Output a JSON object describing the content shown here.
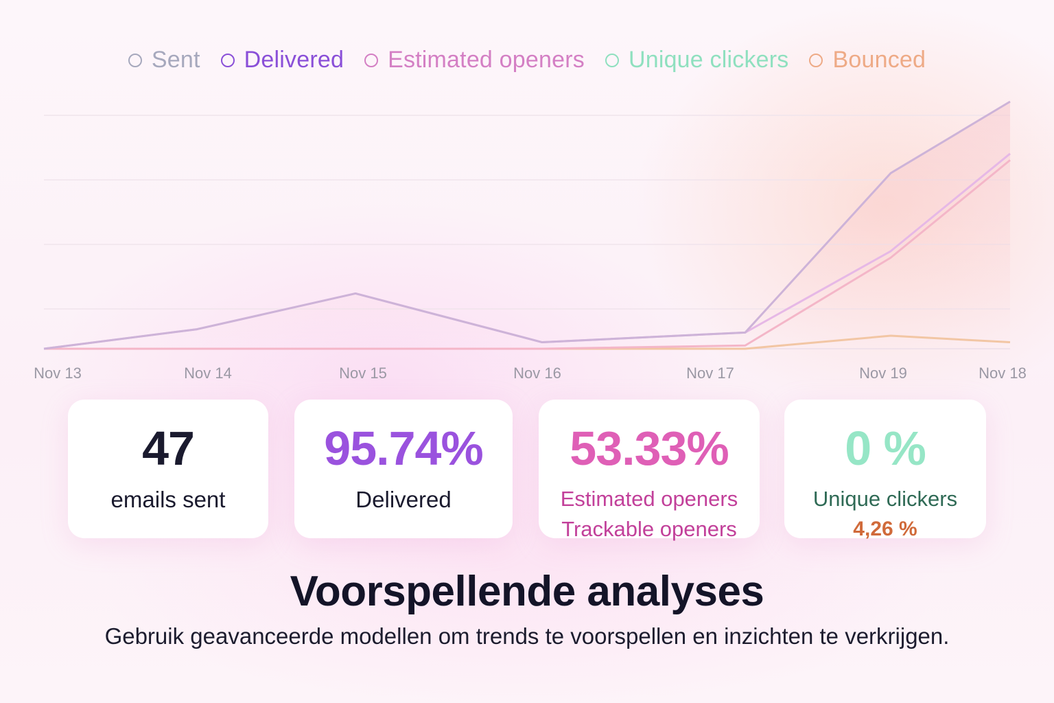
{
  "legend": [
    {
      "name": "Sent",
      "color": "#a6a8bd"
    },
    {
      "name": "Delivered",
      "color": "#8a4fd8"
    },
    {
      "name": "Estimated openers",
      "color": "#d47fc4"
    },
    {
      "name": "Unique clickers",
      "color": "#8fe0bf"
    },
    {
      "name": "Bounced",
      "color": "#eeaa86"
    }
  ],
  "chart_data": {
    "type": "line",
    "categories": [
      "Nov 13",
      "Nov 14",
      "Nov 15",
      "Nov 16",
      "Nov 17",
      "Nov 19",
      "Nov 18"
    ],
    "ylim": [
      0,
      38
    ],
    "grid": true,
    "legend_position": "top",
    "series": [
      {
        "name": "Sent",
        "color": "#cdb3d8",
        "values": [
          0,
          3,
          8.5,
          1,
          2.5,
          27,
          38
        ]
      },
      {
        "name": "Delivered",
        "color": "#e6b8e6",
        "values": [
          0,
          3,
          8.5,
          1,
          2.5,
          15,
          30
        ]
      },
      {
        "name": "Estimated openers",
        "color": "#f4b6c8",
        "values": [
          0,
          0,
          0,
          0,
          0.5,
          14,
          29
        ]
      },
      {
        "name": "Bounced",
        "color": "#f2c6a4",
        "values": [
          0,
          0,
          0,
          0,
          0,
          2,
          1
        ]
      }
    ]
  },
  "cards": [
    {
      "value": "47",
      "label": "emails sent",
      "sub": "",
      "value_color": "#1a1a2e",
      "label_color": "#1a1a2e"
    },
    {
      "value": "95.74%",
      "label": "Delivered",
      "sub": "",
      "value_color": "#9a52de",
      "label_color": "#1a1a2e"
    },
    {
      "value": "53.33%",
      "label": "Estimated openers",
      "sub": "Trackable openers",
      "value_color": "#df5fb6",
      "label_color": "#c2409a",
      "sub_color": "#c2409a"
    },
    {
      "value": "0 %",
      "label": "Unique clickers",
      "sub": "4,26 %",
      "value_color": "#96e6c6",
      "label_color": "#2f6a55",
      "sub_color": "#d06a3a"
    }
  ],
  "headline": "Voorspellende analyses",
  "subline": "Gebruik geavanceerde modellen om trends te voorspellen en inzichten te verkrijgen."
}
